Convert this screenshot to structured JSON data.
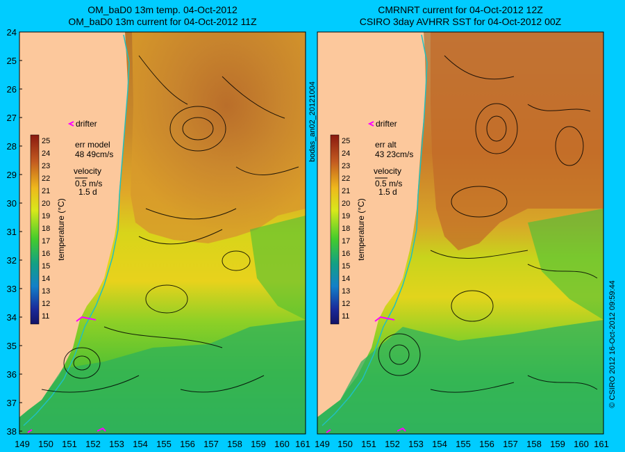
{
  "left_panel": {
    "title_line1": "OM_baD0 13m temp. 04-Oct-2012",
    "title_line2": "OM_baD0 13m current for 04-Oct-2012 11Z",
    "legend_drifter": "drifter",
    "err_label": "err model",
    "err_value": "48 49cm/s",
    "velocity_label": "velocity",
    "velocity_scale": "0.5 m/s",
    "velocity_time": "1.5 d"
  },
  "right_panel": {
    "title_line1": "CMRNRT current for 04-Oct-2012 12Z",
    "title_line2": "CSIRO 3day AVHRR SST for 04-Oct-2012 00Z",
    "legend_drifter": "drifter",
    "err_label": "err alt",
    "err_value": "43 23cm/s",
    "velocity_label": "velocity",
    "velocity_scale": "0.5 m/s",
    "velocity_time": "1.5 d"
  },
  "colorbar": {
    "label": "temperature (°C)",
    "ticks": [
      "25",
      "24",
      "23",
      "22",
      "21",
      "20",
      "19",
      "18",
      "17",
      "16",
      "15",
      "14",
      "13",
      "12",
      "11"
    ],
    "colors": [
      "#8a1a10",
      "#a8321a",
      "#c25a20",
      "#d98a22",
      "#eeb81c",
      "#f5d818",
      "#d8e81a",
      "#8fdc22",
      "#44cc2c",
      "#1fb64a",
      "#13a084",
      "#1480c8",
      "#1a52c8",
      "#1a2a9a",
      "#141466"
    ]
  },
  "axes": {
    "y_ticks": [
      "24",
      "25",
      "26",
      "27",
      "28",
      "29",
      "30",
      "31",
      "32",
      "33",
      "34",
      "35",
      "36",
      "37",
      "38"
    ],
    "x_ticks_left": [
      "149",
      "150",
      "151",
      "152",
      "153",
      "154",
      "155",
      "156",
      "157",
      "158",
      "159",
      "160",
      "161"
    ],
    "x_ticks_right": [
      "149",
      "150",
      "151",
      "152",
      "153",
      "154",
      "155",
      "156",
      "157",
      "158",
      "159",
      "160",
      "161"
    ]
  },
  "side_labels": {
    "middle": "bodas_an02_20121004",
    "right": "© CSIRO 2012   16-Oct-2012 09:59:44"
  },
  "colors": {
    "background": "#00ccff",
    "land": "#fcc89c",
    "drifter": "#ff00ff",
    "coastline_contour": "#20c0c0"
  }
}
